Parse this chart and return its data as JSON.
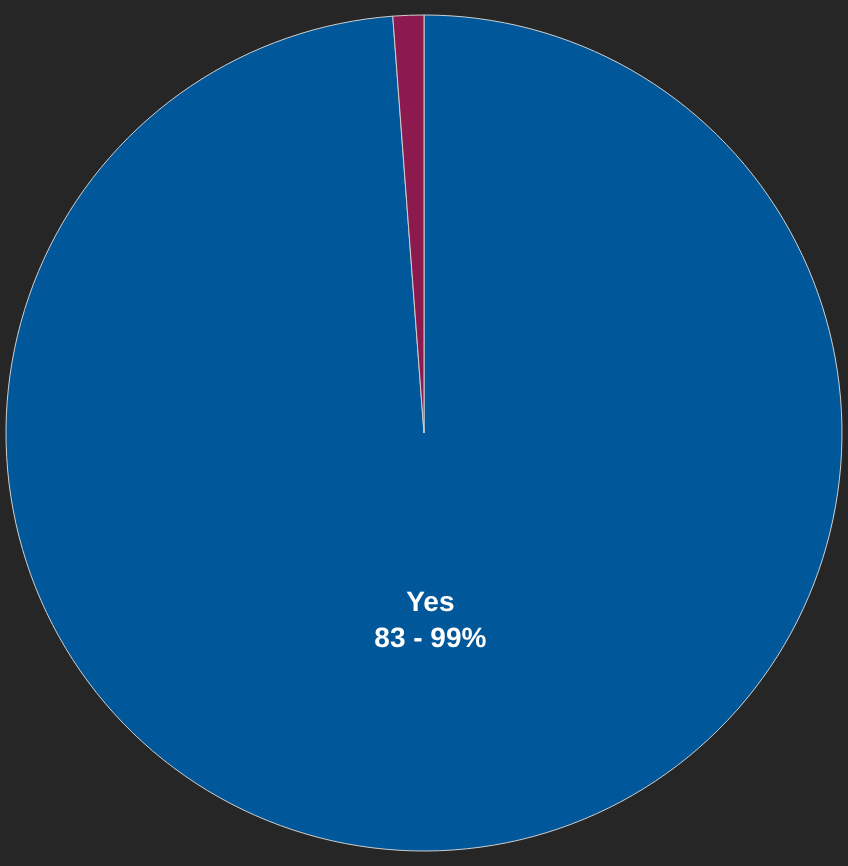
{
  "chart_data": {
    "type": "pie",
    "categories": [
      "Yes",
      null
    ],
    "values": [
      83,
      1
    ],
    "colors": [
      "#00579a",
      "#8c1a4e"
    ],
    "value_labels": [
      "83 - 99%",
      null
    ]
  }
}
